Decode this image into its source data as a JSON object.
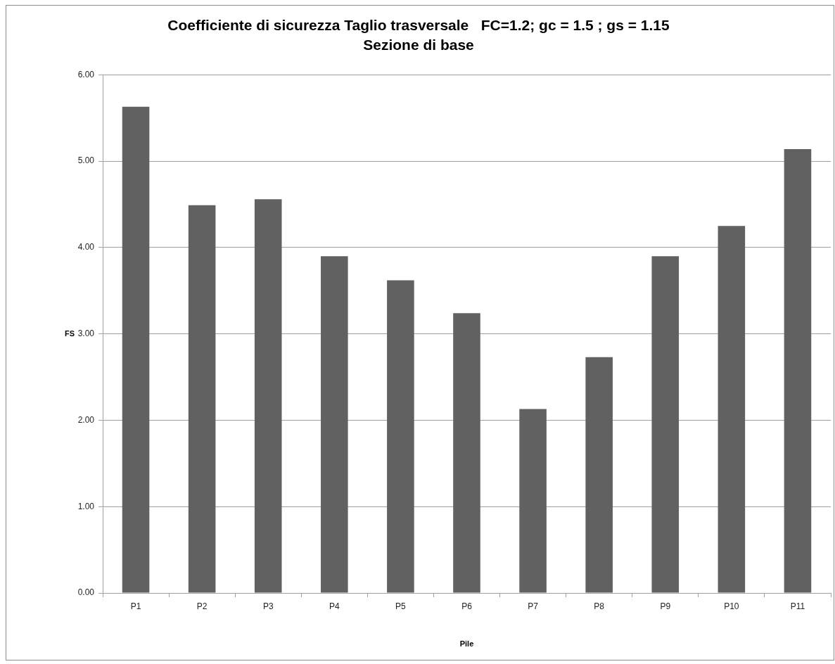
{
  "chart_data": {
    "type": "bar",
    "title": "Coefficiente di sicurezza Taglio trasversale   FC=1.2; gc = 1.5 ; gs = 1.15",
    "subtitle": "Sezione di base",
    "xlabel": "Pile",
    "ylabel": "FS",
    "categories": [
      "P1",
      "P2",
      "P3",
      "P4",
      "P5",
      "P6",
      "P7",
      "P8",
      "P9",
      "P10",
      "P11"
    ],
    "values": [
      5.63,
      4.49,
      4.56,
      3.9,
      3.62,
      3.24,
      2.13,
      2.73,
      3.9,
      4.25,
      5.14
    ],
    "color": "#616161",
    "ylim": [
      0,
      6
    ],
    "yticks": [
      {
        "value": 0,
        "label": "0.00"
      },
      {
        "value": 1,
        "label": "1.00"
      },
      {
        "value": 2,
        "label": "2.00"
      },
      {
        "value": 3,
        "label": "3.00"
      },
      {
        "value": 4,
        "label": "4.00"
      },
      {
        "value": 5,
        "label": "5.00"
      },
      {
        "value": 6,
        "label": "6.00"
      }
    ],
    "grid": "y"
  }
}
